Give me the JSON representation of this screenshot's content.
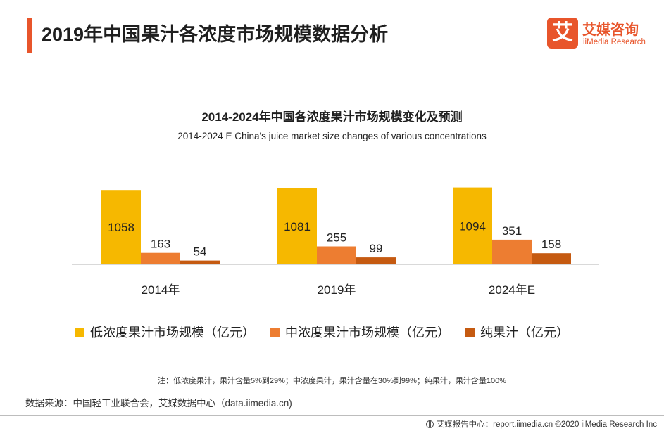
{
  "header": {
    "title": "2019年中国果汁各浓度市场规模数据分析"
  },
  "logo": {
    "mark": "艾",
    "name_cn": "艾媒咨询",
    "name_en": "iiMedia Research"
  },
  "chart_data": {
    "type": "bar",
    "title": "2014-2024年中国各浓度果汁市场规模变化及预测",
    "subtitle": "2014-2024 E China's juice market size changes of various concentrations",
    "categories": [
      "2014年",
      "2019年",
      "2024年E"
    ],
    "series": [
      {
        "name": "低浓度果汁市场规模（亿元）",
        "color": "#f6b800",
        "values": [
          1058,
          1081,
          1094
        ]
      },
      {
        "name": "中浓度果汁市场规模（亿元）",
        "color": "#ed7d31",
        "values": [
          163,
          255,
          351
        ]
      },
      {
        "name": "纯果汁（亿元）",
        "color": "#c55a11",
        "values": [
          54,
          99,
          158
        ]
      }
    ],
    "xlabel": "",
    "ylabel": "",
    "ylim": [
      0,
      1100
    ],
    "grid": false,
    "legend": "bottom"
  },
  "footnote": "注：低浓度果汁，果汁含量5%到29%；中浓度果汁，果汁含量在30%到99%；纯果汁，果汁含量100%",
  "source": "数据来源：中国轻工业联合会，艾媒数据中心（data.iimedia.cn)",
  "bottom_bar": {
    "text": "艾媒报告中心：report.iimedia.cn   ©2020  iiMedia Research  Inc"
  }
}
